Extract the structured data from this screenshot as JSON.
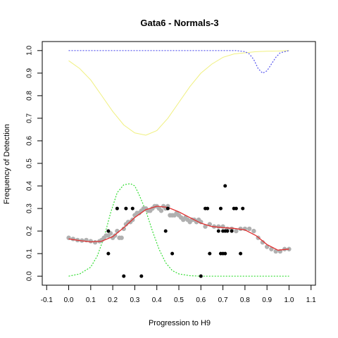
{
  "chart_data": {
    "type": "scatter",
    "title": "Gata6 - Normals-3",
    "xlabel": "Progression to H9",
    "ylabel": "Frequency of Detection",
    "xlim": [
      -0.12,
      1.12
    ],
    "ylim": [
      -0.04,
      1.04
    ],
    "xticks": [
      "-0.1",
      "0.0",
      "0.1",
      "0.2",
      "0.3",
      "0.4",
      "0.5",
      "0.6",
      "0.7",
      "0.8",
      "0.9",
      "1.0",
      "1.1"
    ],
    "xtick_values": [
      -0.1,
      0.0,
      0.1,
      0.2,
      0.3,
      0.4,
      0.5,
      0.6,
      0.7,
      0.8,
      0.9,
      1.0,
      1.1
    ],
    "yticks": [
      "0.0",
      "0.1",
      "0.2",
      "0.3",
      "0.4",
      "0.5",
      "0.6",
      "0.7",
      "0.8",
      "0.9",
      "1.0"
    ],
    "ytick_values": [
      0.0,
      0.1,
      0.2,
      0.3,
      0.4,
      0.5,
      0.6,
      0.7,
      0.8,
      0.9,
      1.0
    ],
    "grid": false,
    "colors": {
      "points": "#000000",
      "smoothed_points": "#b0b0b0",
      "fit": "#e03030",
      "green_curve": "#33dd33",
      "yellow_curve": "#f0f080",
      "blue_curve": "#5555ee"
    },
    "series": [
      {
        "kind": "points",
        "x": [
          0.18,
          0.18,
          0.22,
          0.25,
          0.26,
          0.29,
          0.33,
          0.44,
          0.45,
          0.47,
          0.6,
          0.62,
          0.63,
          0.64,
          0.68,
          0.69,
          0.69,
          0.7,
          0.7,
          0.71,
          0.71,
          0.72,
          0.74,
          0.75,
          0.76,
          0.78,
          0.79,
          0.71
        ],
        "y": [
          0.2,
          0.1,
          0.3,
          0.0,
          0.3,
          0.3,
          0.0,
          0.2,
          0.3,
          0.1,
          0.0,
          0.3,
          0.3,
          0.1,
          0.2,
          0.3,
          0.1,
          0.2,
          0.1,
          0.2,
          0.4,
          0.2,
          0.2,
          0.3,
          0.3,
          0.1,
          0.3,
          0.1
        ]
      },
      {
        "kind": "smoothed_points",
        "x": [
          0.0,
          0.02,
          0.04,
          0.06,
          0.08,
          0.1,
          0.12,
          0.14,
          0.15,
          0.16,
          0.17,
          0.18,
          0.19,
          0.2,
          0.21,
          0.22,
          0.23,
          0.24,
          0.25,
          0.26,
          0.27,
          0.28,
          0.29,
          0.3,
          0.31,
          0.32,
          0.33,
          0.34,
          0.35,
          0.36,
          0.37,
          0.38,
          0.39,
          0.4,
          0.41,
          0.42,
          0.43,
          0.44,
          0.45,
          0.46,
          0.47,
          0.48,
          0.49,
          0.5,
          0.51,
          0.52,
          0.53,
          0.54,
          0.55,
          0.56,
          0.57,
          0.58,
          0.59,
          0.6,
          0.62,
          0.64,
          0.66,
          0.68,
          0.7,
          0.72,
          0.74,
          0.76,
          0.78,
          0.8,
          0.82,
          0.84,
          0.86,
          0.88,
          0.9,
          0.92,
          0.94,
          0.96,
          0.98,
          1.0
        ],
        "y": [
          0.17,
          0.165,
          0.16,
          0.158,
          0.16,
          0.155,
          0.15,
          0.155,
          0.16,
          0.17,
          0.18,
          0.18,
          0.19,
          0.17,
          0.18,
          0.2,
          0.17,
          0.17,
          0.21,
          0.23,
          0.24,
          0.24,
          0.25,
          0.27,
          0.28,
          0.28,
          0.29,
          0.3,
          0.3,
          0.29,
          0.29,
          0.3,
          0.31,
          0.31,
          0.3,
          0.29,
          0.31,
          0.3,
          0.31,
          0.27,
          0.27,
          0.27,
          0.28,
          0.27,
          0.26,
          0.25,
          0.26,
          0.25,
          0.24,
          0.25,
          0.25,
          0.24,
          0.25,
          0.24,
          0.22,
          0.23,
          0.22,
          0.22,
          0.22,
          0.21,
          0.21,
          0.2,
          0.21,
          0.21,
          0.21,
          0.2,
          0.17,
          0.15,
          0.13,
          0.12,
          0.11,
          0.11,
          0.12,
          0.12
        ]
      },
      {
        "kind": "fit",
        "x": [
          0.0,
          0.05,
          0.1,
          0.15,
          0.2,
          0.25,
          0.3,
          0.35,
          0.4,
          0.45,
          0.5,
          0.55,
          0.6,
          0.65,
          0.7,
          0.75,
          0.8,
          0.85,
          0.9,
          0.95,
          1.0
        ],
        "y": [
          0.165,
          0.158,
          0.152,
          0.155,
          0.175,
          0.215,
          0.26,
          0.295,
          0.31,
          0.305,
          0.285,
          0.26,
          0.235,
          0.22,
          0.215,
          0.212,
          0.205,
          0.18,
          0.14,
          0.115,
          0.12
        ]
      },
      {
        "kind": "green_curve",
        "x": [
          0.0,
          0.05,
          0.1,
          0.13,
          0.16,
          0.19,
          0.22,
          0.25,
          0.28,
          0.3,
          0.32,
          0.35,
          0.38,
          0.41,
          0.44,
          0.47,
          0.5,
          0.55,
          0.6,
          0.7,
          0.8,
          0.9,
          1.0
        ],
        "y": [
          0.0,
          0.01,
          0.04,
          0.09,
          0.17,
          0.28,
          0.37,
          0.405,
          0.41,
          0.4,
          0.36,
          0.29,
          0.2,
          0.12,
          0.06,
          0.025,
          0.01,
          0.002,
          0.0,
          0.0,
          0.0,
          0.0,
          0.0
        ]
      },
      {
        "kind": "yellow_curve",
        "x": [
          0.0,
          0.05,
          0.1,
          0.15,
          0.2,
          0.25,
          0.3,
          0.35,
          0.4,
          0.45,
          0.5,
          0.55,
          0.6,
          0.65,
          0.7,
          0.75,
          0.8,
          0.85,
          0.9,
          0.95,
          1.0
        ],
        "y": [
          0.955,
          0.92,
          0.87,
          0.8,
          0.73,
          0.67,
          0.635,
          0.625,
          0.645,
          0.7,
          0.77,
          0.84,
          0.9,
          0.94,
          0.97,
          0.985,
          0.99,
          0.995,
          0.997,
          0.998,
          1.0
        ]
      },
      {
        "kind": "blue_curve",
        "x": [
          0.0,
          0.1,
          0.2,
          0.3,
          0.4,
          0.5,
          0.6,
          0.7,
          0.76,
          0.8,
          0.82,
          0.84,
          0.86,
          0.88,
          0.9,
          0.92,
          0.94,
          0.96,
          1.0
        ],
        "y": [
          1.0,
          1.0,
          1.0,
          1.0,
          1.0,
          1.0,
          1.0,
          1.0,
          1.0,
          0.995,
          0.985,
          0.96,
          0.92,
          0.9,
          0.91,
          0.94,
          0.97,
          0.99,
          1.0
        ]
      }
    ]
  }
}
